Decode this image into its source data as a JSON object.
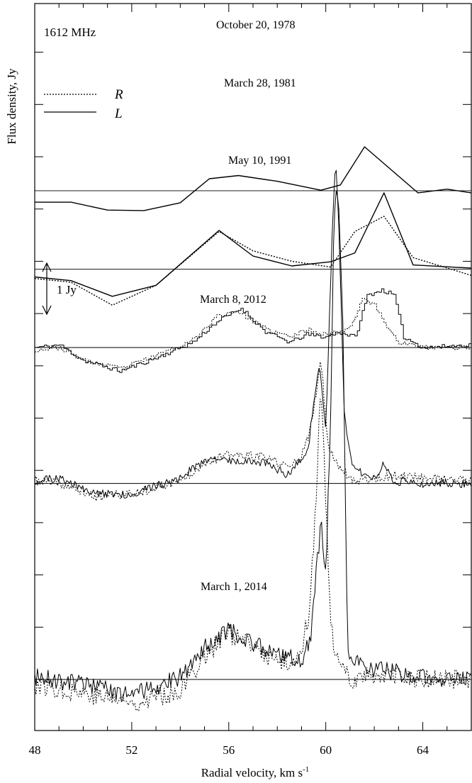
{
  "chart_data": {
    "type": "line",
    "title": "",
    "frequency_label": "1612 MHz",
    "xlabel": "Radial velocity, km s",
    "xlabel_sup": "-1",
    "ylabel": "Flux density, Jy",
    "xlim": [
      48,
      66
    ],
    "x_ticks": [
      48,
      52,
      56,
      60,
      64
    ],
    "scale_bar_label": "1 Jy",
    "legend": [
      {
        "name": "R",
        "style": "dotted"
      },
      {
        "name": "L",
        "style": "solid"
      }
    ],
    "epochs": [
      {
        "label": "October 20, 1978",
        "baseline_offset": 9.35,
        "series": [
          {
            "name": "L",
            "style": "solid",
            "mode": "linear",
            "x": [
              48.0,
              49.5,
              51.0,
              52.5,
              54.0,
              55.2,
              56.4,
              58.0,
              59.8,
              60.6,
              61.6,
              62.4,
              63.8,
              65.0,
              66.0
            ],
            "y": [
              -0.22,
              -0.22,
              -0.37,
              -0.38,
              -0.23,
              0.23,
              0.29,
              0.18,
              0.01,
              0.11,
              0.84,
              0.52,
              -0.04,
              0.03,
              -0.04
            ]
          }
        ]
      },
      {
        "label": "March 28, 1981",
        "baseline_offset": 7.85,
        "series": [
          {
            "name": "R",
            "style": "dotted",
            "mode": "linear",
            "x": [
              48.0,
              49.5,
              51.2,
              53.0,
              55.6,
              57.0,
              58.6,
              60.2,
              61.2,
              62.4,
              63.6,
              66.0
            ],
            "y": [
              -0.18,
              -0.25,
              -0.69,
              -0.31,
              0.72,
              0.35,
              0.15,
              0.04,
              0.72,
              1.01,
              0.22,
              -0.12
            ]
          },
          {
            "name": "L",
            "style": "solid",
            "mode": "linear",
            "x": [
              48.0,
              49.5,
              51.2,
              53.0,
              55.6,
              57.0,
              58.6,
              60.2,
              61.2,
              62.4,
              63.6,
              66.0
            ],
            "y": [
              -0.15,
              -0.22,
              -0.52,
              -0.31,
              0.74,
              0.25,
              0.06,
              0.14,
              0.31,
              1.46,
              0.08,
              0.02
            ]
          }
        ]
      },
      {
        "label": "May 10, 1991",
        "baseline_offset": 6.35,
        "series": [
          {
            "name": "L",
            "style": "solid",
            "mode": "step",
            "seed": 11,
            "noise": 0.04,
            "x": [
              48.0,
              49.0,
              50.0,
              51.5,
              53.0,
              54.5,
              55.5,
              56.5,
              57.5,
              58.5,
              59.2,
              60.0,
              60.5,
              61.2,
              61.7,
              62.3,
              62.8,
              63.2,
              64.0,
              66.0
            ],
            "y": [
              0.0,
              0.05,
              -0.25,
              -0.45,
              -0.2,
              0.1,
              0.5,
              0.75,
              0.3,
              0.1,
              0.25,
              0.2,
              0.3,
              0.2,
              1.0,
              1.1,
              1.0,
              0.2,
              0.0,
              0.05
            ]
          },
          {
            "name": "R",
            "style": "dotted",
            "mode": "step",
            "seed": 23,
            "noise": 0.04,
            "x": [
              48.0,
              49.0,
              50.0,
              51.5,
              53.0,
              54.5,
              55.5,
              56.3,
              57.5,
              58.5,
              59.2,
              60.0,
              60.5,
              61.0,
              61.5,
              62.0,
              62.5,
              63.0,
              64.0,
              66.0
            ],
            "y": [
              -0.05,
              0.0,
              -0.25,
              -0.4,
              -0.15,
              0.15,
              0.6,
              0.7,
              0.35,
              0.2,
              0.35,
              0.25,
              0.3,
              0.4,
              0.95,
              0.8,
              0.4,
              0.1,
              0.0,
              0.0
            ]
          }
        ]
      },
      {
        "label": "March 8, 2012",
        "baseline_offset": 3.75,
        "series": [
          {
            "name": "R",
            "style": "dotted",
            "mode": "linear",
            "seed": 37,
            "noise": 0.09,
            "x": [
              48.0,
              49.0,
              50.5,
              52.0,
              54.0,
              55.0,
              56.0,
              57.5,
              58.5,
              59.1,
              59.4,
              59.8,
              60.1,
              60.4,
              60.7,
              61.2,
              62.0,
              63.0,
              66.0
            ],
            "y": [
              0.05,
              0.0,
              -0.25,
              -0.2,
              0.05,
              0.4,
              0.55,
              0.5,
              0.3,
              0.6,
              1.1,
              2.35,
              0.7,
              0.45,
              0.25,
              0.05,
              0.1,
              0.15,
              0.05
            ]
          },
          {
            "name": "L",
            "style": "solid",
            "mode": "linear",
            "seed": 51,
            "noise": 0.08,
            "x": [
              48.0,
              49.0,
              50.5,
              52.0,
              54.0,
              55.0,
              56.0,
              57.5,
              58.5,
              59.3,
              59.5,
              59.75,
              60.0,
              60.25,
              60.4,
              60.55,
              60.75,
              61.1,
              62.0,
              62.4,
              62.8,
              64.0,
              66.0
            ],
            "y": [
              0.05,
              0.1,
              -0.2,
              -0.2,
              0.1,
              0.45,
              0.45,
              0.4,
              0.15,
              0.7,
              1.6,
              2.3,
              1.0,
              4.6,
              6.2,
              4.9,
              1.4,
              0.3,
              0.1,
              0.4,
              0.05,
              0.0,
              0.0
            ]
          }
        ]
      },
      {
        "label": "March 1, 2014",
        "baseline_offset": 0.0,
        "series": [
          {
            "name": "R",
            "style": "dotted",
            "mode": "linear",
            "seed": 77,
            "noise": 0.2,
            "x": [
              48.0,
              50.0,
              52.0,
              54.0,
              55.0,
              56.0,
              57.0,
              58.2,
              58.9,
              59.3,
              59.55,
              59.8,
              60.0,
              60.2,
              60.5,
              61.0,
              62.0,
              64.0,
              66.0
            ],
            "y": [
              -0.1,
              -0.25,
              -0.45,
              -0.2,
              0.45,
              0.9,
              0.6,
              0.3,
              0.4,
              1.25,
              3.0,
              5.65,
              3.4,
              1.0,
              0.3,
              0.0,
              0.1,
              0.0,
              0.0
            ]
          },
          {
            "name": "L",
            "style": "solid",
            "mode": "linear",
            "seed": 91,
            "noise": 0.17,
            "x": [
              48.0,
              50.0,
              52.0,
              54.0,
              55.0,
              56.0,
              57.0,
              58.2,
              59.0,
              59.4,
              59.6,
              59.8,
              60.0,
              60.2,
              60.35,
              60.5,
              60.7,
              60.9,
              62.0,
              64.0,
              66.0
            ],
            "y": [
              0.05,
              -0.1,
              -0.3,
              0.05,
              0.6,
              0.95,
              0.7,
              0.45,
              0.35,
              0.8,
              2.0,
              3.0,
              2.0,
              5.0,
              9.0,
              9.4,
              7.0,
              0.5,
              0.2,
              0.05,
              0.0
            ]
          }
        ]
      }
    ]
  }
}
